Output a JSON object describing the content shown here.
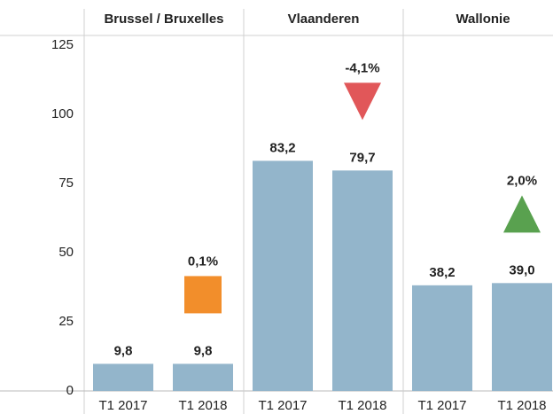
{
  "chart_data": {
    "type": "bar",
    "color": "#93b5cb",
    "ylim": [
      0,
      125
    ],
    "yticks": [
      0,
      25,
      50,
      75,
      100,
      125
    ],
    "panels": [
      {
        "title": "Brussel / Bruxelles",
        "categories": [
          "T1 2017",
          "T1 2018"
        ],
        "values": [
          9.8,
          9.8
        ],
        "value_labels": [
          "9,8",
          "9,8"
        ],
        "change": {
          "value": 0.1,
          "label": "0,1%",
          "shape": "square",
          "color": "#f28e2b"
        }
      },
      {
        "title": "Vlaanderen",
        "categories": [
          "T1 2017",
          "T1 2018"
        ],
        "values": [
          83.2,
          79.7
        ],
        "value_labels": [
          "83,2",
          "79,7"
        ],
        "change": {
          "value": -4.1,
          "label": "-4,1%",
          "shape": "triangle-down",
          "color": "#e15759"
        }
      },
      {
        "title": "Wallonie",
        "categories": [
          "T1 2017",
          "T1 2018"
        ],
        "values": [
          38.2,
          39.0
        ],
        "value_labels": [
          "38,2",
          "39,0"
        ],
        "change": {
          "value": 2.0,
          "label": "2,0%",
          "shape": "triangle-up",
          "color": "#59a14f"
        }
      }
    ]
  }
}
